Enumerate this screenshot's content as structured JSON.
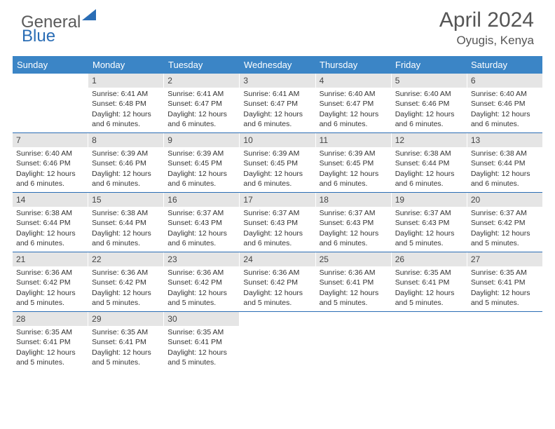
{
  "logo": {
    "text1": "General",
    "text2": "Blue"
  },
  "title": "April 2024",
  "location": "Oyugis, Kenya",
  "colors": {
    "header_bar": "#3b85c6",
    "week_border": "#2a6db5",
    "daynum_bg": "#e5e5e5",
    "text": "#333333",
    "title": "#555555",
    "logo_gray": "#5a5a5a",
    "logo_blue": "#2a6db5"
  },
  "weekdays": [
    "Sunday",
    "Monday",
    "Tuesday",
    "Wednesday",
    "Thursday",
    "Friday",
    "Saturday"
  ],
  "weeks": [
    [
      {
        "n": "",
        "lines": []
      },
      {
        "n": "1",
        "lines": [
          "Sunrise: 6:41 AM",
          "Sunset: 6:48 PM",
          "Daylight: 12 hours",
          "and 6 minutes."
        ]
      },
      {
        "n": "2",
        "lines": [
          "Sunrise: 6:41 AM",
          "Sunset: 6:47 PM",
          "Daylight: 12 hours",
          "and 6 minutes."
        ]
      },
      {
        "n": "3",
        "lines": [
          "Sunrise: 6:41 AM",
          "Sunset: 6:47 PM",
          "Daylight: 12 hours",
          "and 6 minutes."
        ]
      },
      {
        "n": "4",
        "lines": [
          "Sunrise: 6:40 AM",
          "Sunset: 6:47 PM",
          "Daylight: 12 hours",
          "and 6 minutes."
        ]
      },
      {
        "n": "5",
        "lines": [
          "Sunrise: 6:40 AM",
          "Sunset: 6:46 PM",
          "Daylight: 12 hours",
          "and 6 minutes."
        ]
      },
      {
        "n": "6",
        "lines": [
          "Sunrise: 6:40 AM",
          "Sunset: 6:46 PM",
          "Daylight: 12 hours",
          "and 6 minutes."
        ]
      }
    ],
    [
      {
        "n": "7",
        "lines": [
          "Sunrise: 6:40 AM",
          "Sunset: 6:46 PM",
          "Daylight: 12 hours",
          "and 6 minutes."
        ]
      },
      {
        "n": "8",
        "lines": [
          "Sunrise: 6:39 AM",
          "Sunset: 6:46 PM",
          "Daylight: 12 hours",
          "and 6 minutes."
        ]
      },
      {
        "n": "9",
        "lines": [
          "Sunrise: 6:39 AM",
          "Sunset: 6:45 PM",
          "Daylight: 12 hours",
          "and 6 minutes."
        ]
      },
      {
        "n": "10",
        "lines": [
          "Sunrise: 6:39 AM",
          "Sunset: 6:45 PM",
          "Daylight: 12 hours",
          "and 6 minutes."
        ]
      },
      {
        "n": "11",
        "lines": [
          "Sunrise: 6:39 AM",
          "Sunset: 6:45 PM",
          "Daylight: 12 hours",
          "and 6 minutes."
        ]
      },
      {
        "n": "12",
        "lines": [
          "Sunrise: 6:38 AM",
          "Sunset: 6:44 PM",
          "Daylight: 12 hours",
          "and 6 minutes."
        ]
      },
      {
        "n": "13",
        "lines": [
          "Sunrise: 6:38 AM",
          "Sunset: 6:44 PM",
          "Daylight: 12 hours",
          "and 6 minutes."
        ]
      }
    ],
    [
      {
        "n": "14",
        "lines": [
          "Sunrise: 6:38 AM",
          "Sunset: 6:44 PM",
          "Daylight: 12 hours",
          "and 6 minutes."
        ]
      },
      {
        "n": "15",
        "lines": [
          "Sunrise: 6:38 AM",
          "Sunset: 6:44 PM",
          "Daylight: 12 hours",
          "and 6 minutes."
        ]
      },
      {
        "n": "16",
        "lines": [
          "Sunrise: 6:37 AM",
          "Sunset: 6:43 PM",
          "Daylight: 12 hours",
          "and 6 minutes."
        ]
      },
      {
        "n": "17",
        "lines": [
          "Sunrise: 6:37 AM",
          "Sunset: 6:43 PM",
          "Daylight: 12 hours",
          "and 6 minutes."
        ]
      },
      {
        "n": "18",
        "lines": [
          "Sunrise: 6:37 AM",
          "Sunset: 6:43 PM",
          "Daylight: 12 hours",
          "and 6 minutes."
        ]
      },
      {
        "n": "19",
        "lines": [
          "Sunrise: 6:37 AM",
          "Sunset: 6:43 PM",
          "Daylight: 12 hours",
          "and 5 minutes."
        ]
      },
      {
        "n": "20",
        "lines": [
          "Sunrise: 6:37 AM",
          "Sunset: 6:42 PM",
          "Daylight: 12 hours",
          "and 5 minutes."
        ]
      }
    ],
    [
      {
        "n": "21",
        "lines": [
          "Sunrise: 6:36 AM",
          "Sunset: 6:42 PM",
          "Daylight: 12 hours",
          "and 5 minutes."
        ]
      },
      {
        "n": "22",
        "lines": [
          "Sunrise: 6:36 AM",
          "Sunset: 6:42 PM",
          "Daylight: 12 hours",
          "and 5 minutes."
        ]
      },
      {
        "n": "23",
        "lines": [
          "Sunrise: 6:36 AM",
          "Sunset: 6:42 PM",
          "Daylight: 12 hours",
          "and 5 minutes."
        ]
      },
      {
        "n": "24",
        "lines": [
          "Sunrise: 6:36 AM",
          "Sunset: 6:42 PM",
          "Daylight: 12 hours",
          "and 5 minutes."
        ]
      },
      {
        "n": "25",
        "lines": [
          "Sunrise: 6:36 AM",
          "Sunset: 6:41 PM",
          "Daylight: 12 hours",
          "and 5 minutes."
        ]
      },
      {
        "n": "26",
        "lines": [
          "Sunrise: 6:35 AM",
          "Sunset: 6:41 PM",
          "Daylight: 12 hours",
          "and 5 minutes."
        ]
      },
      {
        "n": "27",
        "lines": [
          "Sunrise: 6:35 AM",
          "Sunset: 6:41 PM",
          "Daylight: 12 hours",
          "and 5 minutes."
        ]
      }
    ],
    [
      {
        "n": "28",
        "lines": [
          "Sunrise: 6:35 AM",
          "Sunset: 6:41 PM",
          "Daylight: 12 hours",
          "and 5 minutes."
        ]
      },
      {
        "n": "29",
        "lines": [
          "Sunrise: 6:35 AM",
          "Sunset: 6:41 PM",
          "Daylight: 12 hours",
          "and 5 minutes."
        ]
      },
      {
        "n": "30",
        "lines": [
          "Sunrise: 6:35 AM",
          "Sunset: 6:41 PM",
          "Daylight: 12 hours",
          "and 5 minutes."
        ]
      },
      {
        "n": "",
        "lines": []
      },
      {
        "n": "",
        "lines": []
      },
      {
        "n": "",
        "lines": []
      },
      {
        "n": "",
        "lines": []
      }
    ]
  ]
}
